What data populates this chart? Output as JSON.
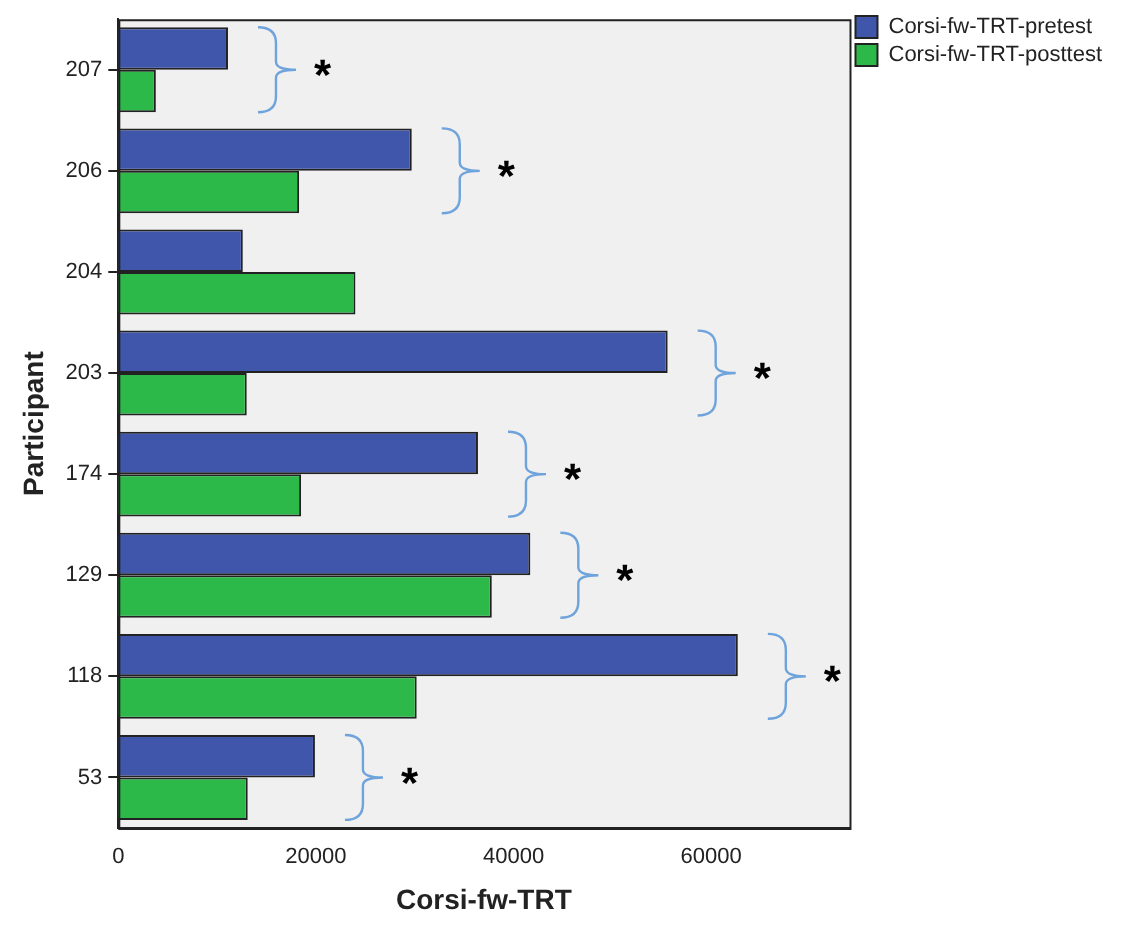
{
  "chart_data": {
    "type": "bar",
    "orientation": "horizontal",
    "xlabel": "Corsi-fw-TRT",
    "ylabel": "Participant",
    "categories": [
      "207",
      "206",
      "204",
      "203",
      "174",
      "129",
      "118",
      "53"
    ],
    "series": [
      {
        "name": "Corsi-fw-TRT-pretest",
        "color": "#3f56aa",
        "values": [
          11100,
          29700,
          12600,
          55600,
          36400,
          41700,
          62700,
          19900
        ]
      },
      {
        "name": "Corsi-fw-TRT-posttest",
        "color": "#2db84a",
        "values": [
          3800,
          18300,
          24000,
          13000,
          18500,
          37800,
          30200,
          13100
        ]
      }
    ],
    "xlim": [
      0,
      74000
    ],
    "xticks": [
      0,
      20000,
      40000,
      60000
    ],
    "grid": false,
    "legend": "top right",
    "annotations": [
      {
        "text": "*",
        "x": 11100,
        "y": "207"
      },
      {
        "text": "*",
        "x": 29700,
        "y": "206"
      },
      {
        "text": "*",
        "x": 55600,
        "y": "203"
      },
      {
        "text": "*",
        "x": 36400,
        "y": "174"
      },
      {
        "text": "*",
        "x": 41700,
        "y": "129"
      },
      {
        "text": "*",
        "x": 62700,
        "y": "118"
      },
      {
        "text": "*",
        "x": 19900,
        "y": "53"
      }
    ]
  }
}
